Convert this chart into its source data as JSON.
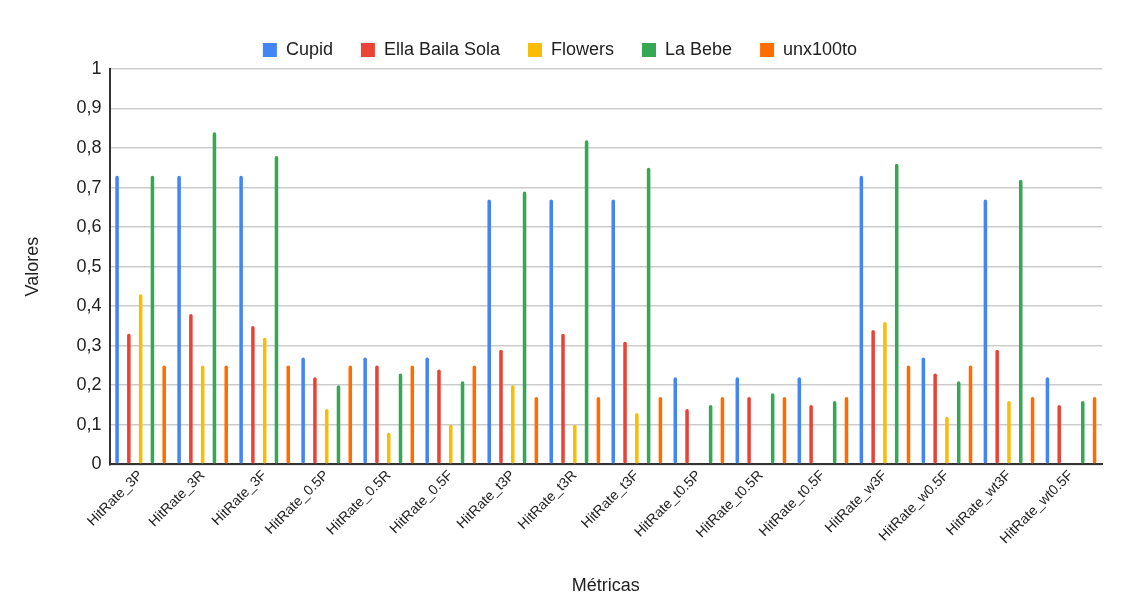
{
  "chart_data": {
    "type": "bar",
    "xlabel": "Métricas",
    "ylabel": "Valores",
    "categories": [
      "HitRate_3P",
      "HitRate_3R",
      "HitRate_3F",
      "HitRate_0.5P",
      "HitRate_0.5R",
      "HitRate_0.5F",
      "HitRate_t3P",
      "HitRate_t3R",
      "HitRate_t3F",
      "HitRate_t0.5P",
      "HitRate_t0.5R",
      "HitRate_t0.5F",
      "HitRate_w3F",
      "HitRate_w0.5F",
      "HitRate_wt3F",
      "HitRate_wt0.5F"
    ],
    "series": [
      {
        "name": "Cupid",
        "color": "#4285f4",
        "values": [
          0.73,
          0.73,
          0.73,
          0.27,
          0.27,
          0.27,
          0.67,
          0.67,
          0.67,
          0.22,
          0.22,
          0.22,
          0.73,
          0.27,
          0.67,
          0.22
        ]
      },
      {
        "name": "Ella Baila Sola",
        "color": "#ea4335",
        "values": [
          0.33,
          0.38,
          0.35,
          0.22,
          0.25,
          0.24,
          0.29,
          0.33,
          0.31,
          0.14,
          0.17,
          0.15,
          0.34,
          0.23,
          0.29,
          0.15
        ]
      },
      {
        "name": "Flowers",
        "color": "#fbbc04",
        "values": [
          0.43,
          0.25,
          0.32,
          0.14,
          0.08,
          0.1,
          0.2,
          0.1,
          0.13,
          null,
          null,
          null,
          0.36,
          0.12,
          0.16,
          null
        ]
      },
      {
        "name": "La Bebe",
        "color": "#34a853",
        "values": [
          0.73,
          0.84,
          0.78,
          0.2,
          0.23,
          0.21,
          0.69,
          0.82,
          0.75,
          0.15,
          0.18,
          0.16,
          0.76,
          0.21,
          0.72,
          0.16
        ]
      },
      {
        "name": "unx100to",
        "color": "#ff6d01",
        "values": [
          0.25,
          0.25,
          0.25,
          0.25,
          0.25,
          0.25,
          0.17,
          0.17,
          0.17,
          0.17,
          0.17,
          0.17,
          0.25,
          0.25,
          0.17,
          0.17
        ]
      }
    ],
    "ylim": [
      0,
      1
    ],
    "yticks": [
      0,
      {
        "value": 0.1,
        "label": "0,1"
      },
      {
        "value": 0.2,
        "label": "0,2"
      },
      {
        "value": 0.3,
        "label": "0,3"
      },
      {
        "value": 0.4,
        "label": "0,4"
      },
      {
        "value": 0.5,
        "label": "0,5"
      },
      {
        "value": 0.6,
        "label": "0,6"
      },
      {
        "value": 0.7,
        "label": "0,7"
      },
      {
        "value": 0.8,
        "label": "0,8"
      },
      {
        "value": 0.9,
        "label": "0,9"
      },
      1
    ],
    "grid": "y",
    "legend": "top"
  }
}
